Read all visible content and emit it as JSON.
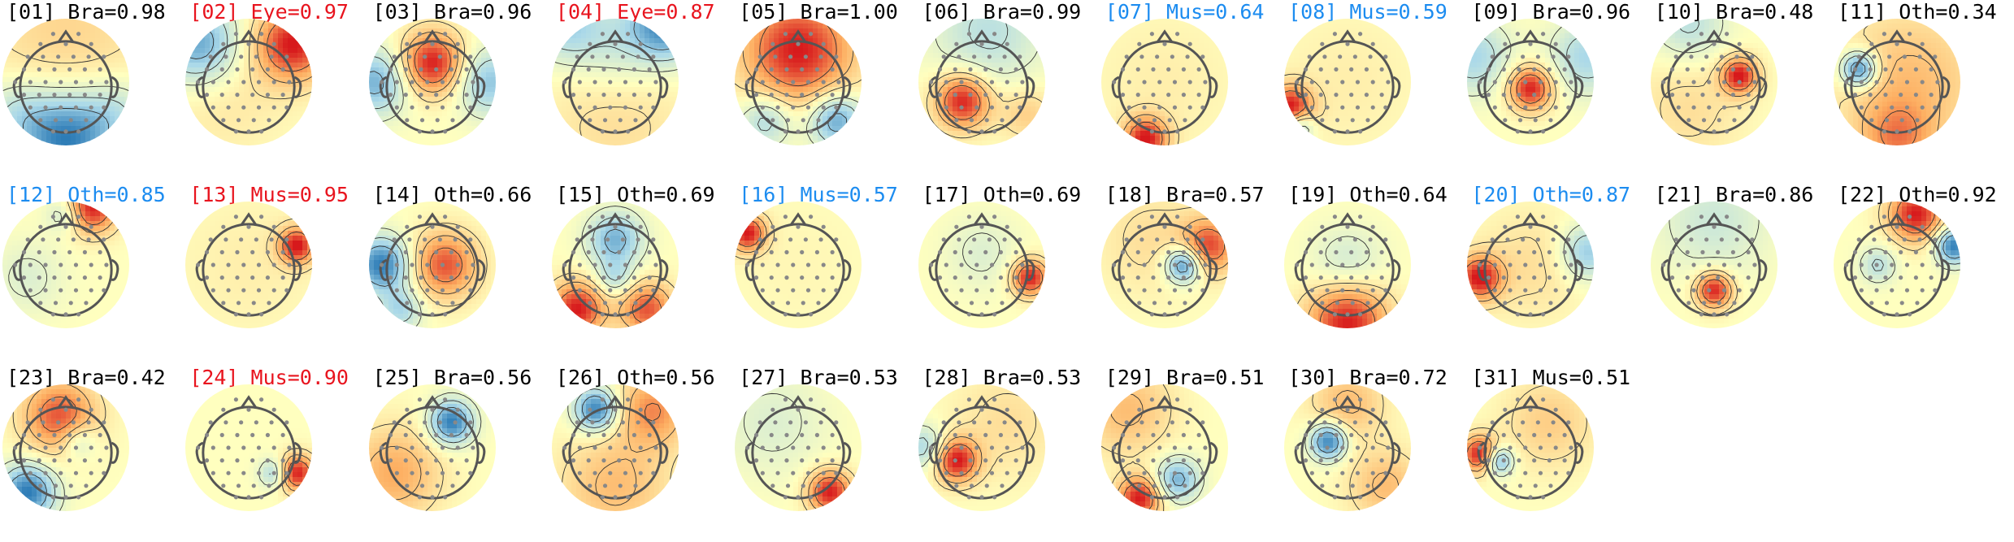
{
  "colors": {
    "black": "#000000",
    "red": "#e8141e",
    "blue": "#1c8cf0",
    "colormap": [
      "#2c7bb6",
      "#abd9e9",
      "#ffffbf",
      "#fdae61",
      "#d7191c"
    ]
  },
  "components": [
    {
      "label": "[01] Bra=0.98",
      "color": "black",
      "blobs": [
        [
          0.5,
          0.95,
          -1.0,
          0.25
        ],
        [
          0.5,
          0.1,
          0.25,
          0.5
        ],
        [
          0.1,
          0.75,
          -0.35,
          0.2
        ],
        [
          0.9,
          0.75,
          -0.35,
          0.2
        ]
      ]
    },
    {
      "label": "[02] Eye=0.97",
      "color": "red",
      "blobs": [
        [
          0.85,
          0.2,
          1.0,
          0.2
        ],
        [
          0.1,
          0.2,
          -0.8,
          0.22
        ],
        [
          0.3,
          0.6,
          0.15,
          0.35
        ]
      ]
    },
    {
      "label": "[03] Bra=0.96",
      "color": "black",
      "blobs": [
        [
          0.5,
          0.35,
          1.0,
          0.17
        ],
        [
          0.05,
          0.5,
          -0.7,
          0.18
        ],
        [
          0.95,
          0.5,
          -0.6,
          0.18
        ]
      ]
    },
    {
      "label": "[04] Eye=0.87",
      "color": "red",
      "blobs": [
        [
          0.9,
          0.05,
          -0.9,
          0.2
        ],
        [
          0.1,
          0.05,
          -0.5,
          0.2
        ],
        [
          0.5,
          0.2,
          -0.3,
          0.25
        ],
        [
          0.5,
          0.8,
          0.2,
          0.4
        ]
      ]
    },
    {
      "label": "[05] Bra=1.00",
      "color": "black",
      "blobs": [
        [
          0.5,
          0.25,
          1.0,
          0.3
        ],
        [
          0.8,
          0.8,
          -0.8,
          0.15
        ],
        [
          0.25,
          0.8,
          -0.5,
          0.15
        ]
      ]
    },
    {
      "label": "[06] Bra=0.99",
      "color": "black",
      "blobs": [
        [
          0.35,
          0.65,
          1.0,
          0.15
        ],
        [
          0.55,
          0.1,
          -0.4,
          0.3
        ],
        [
          0.85,
          0.75,
          0.3,
          0.15
        ]
      ]
    },
    {
      "label": "[07] Mus=0.64",
      "color": "blue",
      "blobs": [
        [
          0.35,
          0.95,
          1.0,
          0.12
        ],
        [
          0.5,
          0.5,
          0.1,
          0.4
        ]
      ]
    },
    {
      "label": "[08] Mus=0.59",
      "color": "blue",
      "blobs": [
        [
          0.05,
          0.7,
          1.0,
          0.12
        ],
        [
          0.12,
          0.85,
          -0.6,
          0.08
        ],
        [
          0.5,
          0.5,
          0.1,
          0.4
        ]
      ]
    },
    {
      "label": "[09] Bra=0.96",
      "color": "black",
      "blobs": [
        [
          0.5,
          0.55,
          1.0,
          0.12
        ],
        [
          0.05,
          0.3,
          -0.5,
          0.2
        ],
        [
          0.95,
          0.3,
          -0.5,
          0.2
        ]
      ]
    },
    {
      "label": "[10] Bra=0.48",
      "color": "black",
      "blobs": [
        [
          0.7,
          0.45,
          1.0,
          0.1
        ],
        [
          0.3,
          0.05,
          -0.4,
          0.2
        ],
        [
          0.3,
          0.7,
          0.2,
          0.3
        ]
      ]
    },
    {
      "label": "[11] Oth=0.34",
      "color": "black",
      "blobs": [
        [
          0.2,
          0.4,
          -1.0,
          0.1
        ],
        [
          0.6,
          0.5,
          0.4,
          0.4
        ],
        [
          0.5,
          0.95,
          0.5,
          0.2
        ]
      ]
    },
    {
      "label": "[12] Oth=0.85",
      "color": "blue",
      "blobs": [
        [
          0.7,
          0.05,
          1.0,
          0.14
        ],
        [
          0.5,
          0.1,
          -0.4,
          0.1
        ],
        [
          0.2,
          0.6,
          -0.2,
          0.2
        ]
      ]
    },
    {
      "label": "[13] Mus=0.95",
      "color": "red",
      "blobs": [
        [
          0.88,
          0.35,
          1.0,
          0.1
        ],
        [
          0.5,
          0.5,
          0.1,
          0.4
        ]
      ]
    },
    {
      "label": "[14] Oth=0.66",
      "color": "black",
      "blobs": [
        [
          0.6,
          0.5,
          0.8,
          0.18
        ],
        [
          0.1,
          0.5,
          -1.0,
          0.15
        ],
        [
          0.25,
          0.85,
          -0.5,
          0.12
        ]
      ]
    },
    {
      "label": "[15] Oth=0.69",
      "color": "black",
      "blobs": [
        [
          0.5,
          0.3,
          -0.7,
          0.15
        ],
        [
          0.2,
          0.85,
          1.0,
          0.15
        ],
        [
          0.75,
          0.85,
          0.8,
          0.15
        ],
        [
          0.5,
          0.6,
          -0.4,
          0.1
        ]
      ]
    },
    {
      "label": "[16] Mus=0.57",
      "color": "blue",
      "blobs": [
        [
          0.1,
          0.25,
          1.0,
          0.1
        ],
        [
          0.5,
          0.5,
          0.05,
          0.4
        ]
      ]
    },
    {
      "label": "[17] Oth=0.69",
      "color": "black",
      "blobs": [
        [
          0.88,
          0.6,
          1.0,
          0.1
        ],
        [
          0.5,
          0.4,
          -0.2,
          0.2
        ]
      ]
    },
    {
      "label": "[18] Bra=0.57",
      "color": "black",
      "blobs": [
        [
          0.65,
          0.5,
          -1.0,
          0.1
        ],
        [
          0.85,
          0.35,
          0.8,
          0.15
        ],
        [
          0.4,
          0.3,
          0.2,
          0.3
        ]
      ]
    },
    {
      "label": "[19] Oth=0.64",
      "color": "black",
      "blobs": [
        [
          0.5,
          0.95,
          1.0,
          0.22
        ],
        [
          0.5,
          0.5,
          -0.3,
          0.2
        ]
      ]
    },
    {
      "label": "[20] Oth=0.87",
      "color": "blue",
      "blobs": [
        [
          0.1,
          0.6,
          1.0,
          0.12
        ],
        [
          0.95,
          0.4,
          -0.6,
          0.15
        ],
        [
          0.5,
          0.5,
          0.2,
          0.3
        ]
      ]
    },
    {
      "label": "[21] Bra=0.86",
      "color": "black",
      "blobs": [
        [
          0.5,
          0.7,
          1.0,
          0.1
        ],
        [
          0.5,
          0.15,
          -0.3,
          0.3
        ]
      ]
    },
    {
      "label": "[22] Oth=0.92",
      "color": "black",
      "blobs": [
        [
          0.65,
          0.1,
          1.0,
          0.15
        ],
        [
          0.95,
          0.35,
          -1.0,
          0.1
        ],
        [
          0.35,
          0.5,
          -0.4,
          0.1
        ]
      ]
    },
    {
      "label": "[23] Bra=0.42",
      "color": "black",
      "blobs": [
        [
          0.45,
          0.25,
          0.8,
          0.2
        ],
        [
          0.2,
          0.85,
          -1.0,
          0.15
        ],
        [
          0.6,
          0.45,
          -0.4,
          0.1
        ]
      ]
    },
    {
      "label": "[24] Mus=0.90",
      "color": "red",
      "blobs": [
        [
          0.88,
          0.7,
          1.0,
          0.1
        ],
        [
          0.7,
          0.7,
          -0.5,
          0.08
        ]
      ]
    },
    {
      "label": "[25] Bra=0.56",
      "color": "black",
      "blobs": [
        [
          0.65,
          0.3,
          -1.0,
          0.12
        ],
        [
          0.2,
          0.7,
          0.5,
          0.25
        ]
      ]
    },
    {
      "label": "[26] Oth=0.56",
      "color": "black",
      "blobs": [
        [
          0.35,
          0.2,
          -1.0,
          0.12
        ],
        [
          0.8,
          0.2,
          0.6,
          0.2
        ],
        [
          0.5,
          0.8,
          0.4,
          0.3
        ]
      ]
    },
    {
      "label": "[27] Bra=0.53",
      "color": "black",
      "blobs": [
        [
          0.75,
          0.85,
          1.0,
          0.12
        ],
        [
          0.3,
          0.3,
          -0.2,
          0.3
        ]
      ]
    },
    {
      "label": "[28] Bra=0.53",
      "color": "black",
      "blobs": [
        [
          0.3,
          0.6,
          1.0,
          0.12
        ],
        [
          0.05,
          0.5,
          -0.5,
          0.12
        ],
        [
          0.7,
          0.3,
          0.2,
          0.3
        ]
      ]
    },
    {
      "label": "[29] Bra=0.51",
      "color": "black",
      "blobs": [
        [
          0.3,
          0.9,
          1.0,
          0.12
        ],
        [
          0.6,
          0.75,
          -0.7,
          0.12
        ],
        [
          0.2,
          0.2,
          0.4,
          0.25
        ]
      ]
    },
    {
      "label": "[30] Bra=0.72",
      "color": "black",
      "blobs": [
        [
          0.35,
          0.45,
          -1.0,
          0.1
        ],
        [
          0.5,
          0.15,
          0.4,
          0.2
        ],
        [
          0.8,
          0.8,
          0.4,
          0.2
        ]
      ]
    },
    {
      "label": "[31] Mus=0.51",
      "color": "black",
      "blobs": [
        [
          0.1,
          0.55,
          1.0,
          0.1
        ],
        [
          0.25,
          0.6,
          -0.8,
          0.08
        ],
        [
          0.65,
          0.3,
          0.3,
          0.25
        ]
      ]
    }
  ]
}
